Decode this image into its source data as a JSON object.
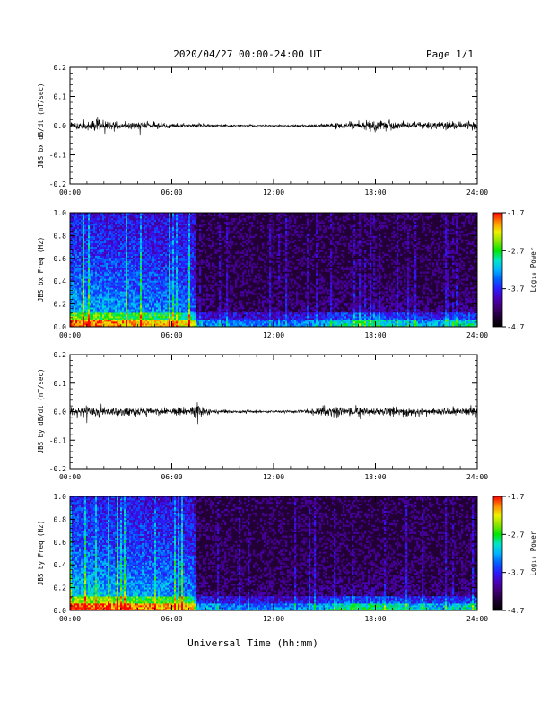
{
  "header": {
    "title": "2020/04/27  00:00-24:00 UT",
    "page": "Page 1/1"
  },
  "xlabel": "Universal Time (hh:mm)",
  "colorbar_colors": [
    "#000000",
    "#1c0030",
    "#3f0070",
    "#4a00b8",
    "#2a1cff",
    "#0060ff",
    "#00b4ff",
    "#00e6c8",
    "#00e600",
    "#8ce600",
    "#f0f000",
    "#ff8c00",
    "#ff0000"
  ],
  "chart_data": [
    {
      "type": "line",
      "title": "",
      "ylabel": "JBS bx dB/dt (nT/sec)",
      "xlim": [
        "00:00",
        "24:00"
      ],
      "ylim": [
        -0.2,
        0.2
      ],
      "x_ticks": [
        "00:00",
        "06:00",
        "12:00",
        "18:00",
        "24:00"
      ],
      "y_ticks": [
        "-0.2",
        "-0.1",
        "0.0",
        "0.1",
        "0.2"
      ],
      "grid": false,
      "series": [
        {
          "color": "#000000",
          "x_hours": [
            0,
            1,
            1.5,
            2,
            2.5,
            3,
            4,
            5,
            6,
            7,
            7.5,
            8,
            9,
            10,
            11,
            12,
            13,
            14,
            15,
            15.5,
            16,
            17,
            18,
            19,
            20,
            21,
            22,
            23,
            24
          ],
          "envelope": [
            0.02,
            0.025,
            0.04,
            0.035,
            0.025,
            0.02,
            0.02,
            0.02,
            0.015,
            0.012,
            0.014,
            0.008,
            0.007,
            0.006,
            0.005,
            0.005,
            0.006,
            0.008,
            0.012,
            0.02,
            0.02,
            0.025,
            0.03,
            0.03,
            0.022,
            0.022,
            0.025,
            0.025,
            0.03
          ]
        }
      ]
    },
    {
      "type": "heatmap",
      "title": "",
      "ylabel": "JBS bx Freq (Hz)",
      "xlim": [
        "00:00",
        "24:00"
      ],
      "ylim": [
        0.0,
        1.0
      ],
      "x_ticks": [
        "00:00",
        "06:00",
        "12:00",
        "18:00",
        "24:00"
      ],
      "y_ticks": [
        "0.0",
        "0.2",
        "0.4",
        "0.6",
        "0.8",
        "1.0"
      ],
      "colorbar": {
        "label": "Log₁₀ Power",
        "ticks": [
          "-1.7",
          "-2.7",
          "-3.7",
          "-4.7"
        ],
        "range": [
          -4.7,
          -1.7
        ]
      },
      "activity_hours": [
        0,
        2,
        4,
        6,
        7.3,
        7.5,
        9,
        12,
        14,
        15,
        16,
        17,
        18,
        19,
        20,
        21,
        22,
        23,
        24
      ],
      "activity_levels": [
        0.9,
        0.85,
        0.8,
        0.75,
        0.7,
        0.3,
        0.25,
        0.22,
        0.25,
        0.35,
        0.5,
        0.55,
        0.55,
        0.5,
        0.4,
        0.35,
        0.35,
        0.45,
        0.6
      ]
    },
    {
      "type": "line",
      "title": "",
      "ylabel": "JBS by dB/dt (nT/sec)",
      "xlim": [
        "00:00",
        "24:00"
      ],
      "ylim": [
        -0.2,
        0.2
      ],
      "x_ticks": [
        "00:00",
        "06:00",
        "12:00",
        "18:00",
        "24:00"
      ],
      "y_ticks": [
        "-0.2",
        "-0.1",
        "0.0",
        "0.1",
        "0.2"
      ],
      "grid": false,
      "series": [
        {
          "color": "#000000",
          "x_hours": [
            0,
            1,
            2,
            3,
            4,
            5,
            6,
            7,
            7.5,
            8,
            9,
            10,
            11,
            12,
            13,
            14,
            15,
            15.5,
            16,
            17,
            18,
            19,
            20,
            21,
            22,
            23,
            24
          ],
          "envelope": [
            0.03,
            0.03,
            0.03,
            0.025,
            0.025,
            0.025,
            0.022,
            0.03,
            0.05,
            0.02,
            0.012,
            0.01,
            0.008,
            0.007,
            0.008,
            0.015,
            0.03,
            0.04,
            0.03,
            0.028,
            0.028,
            0.025,
            0.025,
            0.022,
            0.022,
            0.025,
            0.03
          ]
        }
      ]
    },
    {
      "type": "heatmap",
      "title": "",
      "ylabel": "JBS by Freq (Hz)",
      "xlim": [
        "00:00",
        "24:00"
      ],
      "ylim": [
        0.0,
        1.0
      ],
      "x_ticks": [
        "00:00",
        "06:00",
        "12:00",
        "18:00",
        "24:00"
      ],
      "y_ticks": [
        "0.0",
        "0.2",
        "0.4",
        "0.6",
        "0.8",
        "1.0"
      ],
      "colorbar": {
        "label": "Log₁₀ Power",
        "ticks": [
          "-1.7",
          "-2.7",
          "-3.7",
          "-4.7"
        ],
        "range": [
          -4.7,
          -1.7
        ]
      },
      "activity_hours": [
        0,
        2,
        4,
        6,
        7.3,
        7.5,
        9,
        12,
        14,
        15,
        16,
        17,
        18,
        19,
        20,
        21,
        22,
        23,
        24
      ],
      "activity_levels": [
        0.95,
        0.9,
        0.85,
        0.8,
        0.75,
        0.35,
        0.28,
        0.25,
        0.3,
        0.4,
        0.55,
        0.6,
        0.62,
        0.55,
        0.45,
        0.4,
        0.38,
        0.45,
        0.6
      ]
    }
  ]
}
